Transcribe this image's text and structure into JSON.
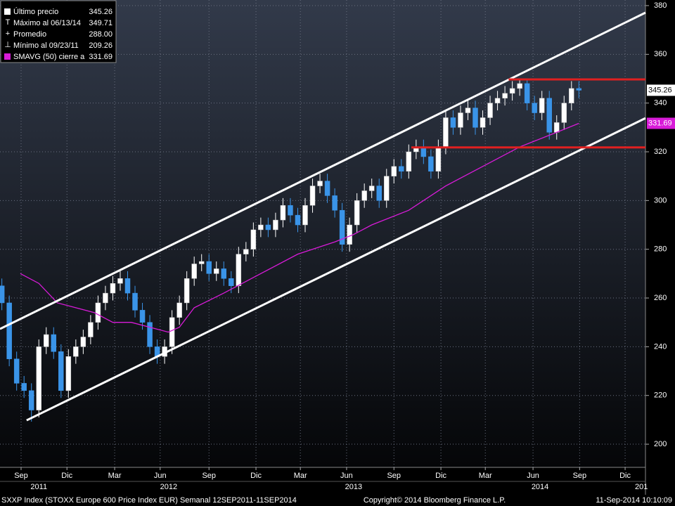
{
  "chart_data": {
    "type": "candlestick",
    "ylim": [
      190.5,
      382.3
    ],
    "yticks": [
      200,
      220,
      240,
      260,
      280,
      300,
      320,
      340,
      360,
      380
    ],
    "xlim": [
      -0.5,
      174
    ],
    "xticks": [
      {
        "value": 5.2,
        "label": "Sep"
      },
      {
        "value": 17.6,
        "label": "Dic"
      },
      {
        "value": 30.5,
        "label": "Mar"
      },
      {
        "value": 42.8,
        "label": "Jun"
      },
      {
        "value": 56,
        "label": "Sep"
      },
      {
        "value": 68.7,
        "label": "Dic"
      },
      {
        "value": 80.7,
        "label": "Mar"
      },
      {
        "value": 93.2,
        "label": "Jun"
      },
      {
        "value": 106,
        "label": "Sep"
      },
      {
        "value": 118.7,
        "label": "Dic"
      },
      {
        "value": 130.7,
        "label": "Mar"
      },
      {
        "value": 143.6,
        "label": "Jun"
      },
      {
        "value": 156.2,
        "label": "Sep"
      },
      {
        "value": 168.5,
        "label": "Dic"
      }
    ],
    "year_ticks": [
      {
        "value": 10,
        "label": "2011"
      },
      {
        "value": 45.1,
        "label": "2012"
      },
      {
        "value": 95.1,
        "label": "2013"
      },
      {
        "value": 145.5,
        "label": "2014"
      },
      {
        "value": 172.9,
        "label": "201"
      }
    ],
    "grid": true,
    "up_color": "#ffffff",
    "down_color": "#3a94e8",
    "candles": {
      "x": [
        0,
        2,
        4,
        6,
        8,
        10,
        12,
        14,
        16,
        18,
        20,
        22,
        24,
        26,
        28,
        30,
        32,
        34,
        36,
        38,
        40,
        42,
        44,
        46,
        48,
        50,
        52,
        54,
        56,
        58,
        60,
        62,
        64,
        66,
        68,
        70,
        72,
        74,
        76,
        78,
        80,
        82,
        84,
        86,
        88,
        90,
        92,
        94,
        96,
        98,
        100,
        102,
        104,
        106,
        108,
        110,
        112,
        114,
        116,
        118,
        120,
        122,
        124,
        126,
        128,
        130,
        132,
        134,
        136,
        138,
        140,
        142,
        144,
        146,
        148,
        150,
        152,
        154,
        156
      ],
      "open": [
        265,
        258,
        235,
        225,
        222,
        214,
        240,
        245,
        238,
        222,
        236,
        240,
        244,
        250,
        258,
        262,
        266,
        268,
        262,
        255,
        250,
        240,
        236,
        240,
        252,
        258,
        268,
        274,
        275,
        270,
        272,
        268,
        265,
        278,
        280,
        288,
        290,
        288,
        292,
        298,
        294,
        290,
        298,
        306,
        308,
        302,
        296,
        282,
        290,
        300,
        304,
        306,
        300,
        310,
        314,
        312,
        320,
        322,
        318,
        312,
        322,
        334,
        330,
        336,
        338,
        330,
        334,
        340,
        342,
        344,
        346,
        348,
        340,
        336,
        342,
        328,
        332,
        340,
        346
      ],
      "high": [
        268,
        261,
        238,
        228,
        225,
        243,
        248,
        248,
        241,
        239,
        243,
        247,
        253,
        261,
        265,
        269,
        271,
        271,
        265,
        258,
        253,
        243,
        243,
        255,
        261,
        271,
        277,
        278,
        278,
        275,
        275,
        271,
        281,
        283,
        291,
        293,
        293,
        295,
        301,
        301,
        297,
        301,
        309,
        311,
        311,
        305,
        299,
        293,
        303,
        307,
        309,
        309,
        313,
        317,
        317,
        323,
        325,
        325,
        321,
        325,
        337,
        337,
        339,
        341,
        341,
        337,
        343,
        345,
        347,
        349,
        349.5,
        349.71,
        343,
        345,
        345,
        335,
        343,
        349,
        349
      ],
      "low": [
        255,
        232,
        222,
        219,
        209.26,
        211,
        237,
        235,
        219,
        219,
        233,
        237,
        241,
        247,
        255,
        259,
        263,
        259,
        252,
        247,
        237,
        233,
        233,
        237,
        249,
        255,
        265,
        271,
        267,
        267,
        265,
        262,
        262,
        275,
        277,
        285,
        285,
        285,
        289,
        291,
        287,
        287,
        295,
        303,
        299,
        293,
        279,
        279,
        287,
        297,
        301,
        297,
        297,
        307,
        309,
        309,
        317,
        315,
        309,
        309,
        319,
        327,
        327,
        333,
        327,
        327,
        331,
        337,
        339,
        341,
        343,
        337,
        333,
        333,
        325,
        325,
        329,
        337,
        342
      ],
      "close": [
        258,
        235,
        225,
        222,
        214,
        240,
        245,
        238,
        222,
        236,
        240,
        244,
        250,
        258,
        262,
        266,
        268,
        262,
        255,
        250,
        240,
        236,
        240,
        252,
        258,
        268,
        274,
        275,
        270,
        272,
        268,
        265,
        278,
        280,
        288,
        290,
        288,
        292,
        298,
        294,
        290,
        298,
        306,
        308,
        302,
        296,
        282,
        290,
        300,
        304,
        306,
        300,
        310,
        314,
        312,
        320,
        322,
        318,
        312,
        322,
        334,
        330,
        336,
        338,
        330,
        334,
        340,
        342,
        344,
        346,
        348,
        340,
        336,
        342,
        328,
        332,
        340,
        346,
        345.26
      ]
    },
    "sma": {
      "name": "SMAVG (50) cierre a",
      "color": "#d81bd8",
      "x": [
        5,
        10,
        15,
        20,
        25,
        30,
        35,
        40,
        45,
        48,
        52,
        60,
        70,
        80,
        90,
        95,
        100,
        110,
        120,
        130,
        140,
        150,
        156
      ],
      "values": [
        270,
        266,
        258,
        256,
        254,
        250,
        250,
        248,
        246,
        248,
        256,
        262,
        270,
        278,
        283,
        286,
        290,
        296,
        306,
        314,
        322,
        328,
        331.69
      ]
    },
    "channel_lines": [
      {
        "x": [
          -0.5,
          174
        ],
        "values": [
          247.3,
          377.1
        ],
        "color": "#ffffff"
      },
      {
        "x": [
          6.7,
          174
        ],
        "values": [
          209.8,
          333.8
        ],
        "color": "#ffffff"
      }
    ],
    "level_lines": [
      {
        "x": [
          137,
          174
        ],
        "values": [
          349.71,
          349.71
        ],
        "color": "#e02020"
      },
      {
        "x": [
          110.7,
          174
        ],
        "values": [
          321.8,
          321.8
        ],
        "color": "#e02020"
      }
    ],
    "legend": [
      {
        "label": "Último precio",
        "value": 345.26
      },
      {
        "label": "Máximo al 06/13/14",
        "value": 349.71
      },
      {
        "label": "Promedio",
        "value": 288,
        "value_label": "288.00"
      },
      {
        "label": "Mínimo al 09/23/11",
        "value": 209.26
      },
      {
        "label": "SMAVG (50) cierre a",
        "value": 331.69
      }
    ],
    "footer": {
      "left": "SXXP Index (STOXX Europe 600 Price Index EUR)  Semanal 12SEP2011-11SEP2014",
      "center": "Copyright© 2014 Bloomberg Finance L.P.",
      "right": "11-Sep-2014 10:10:09"
    }
  }
}
